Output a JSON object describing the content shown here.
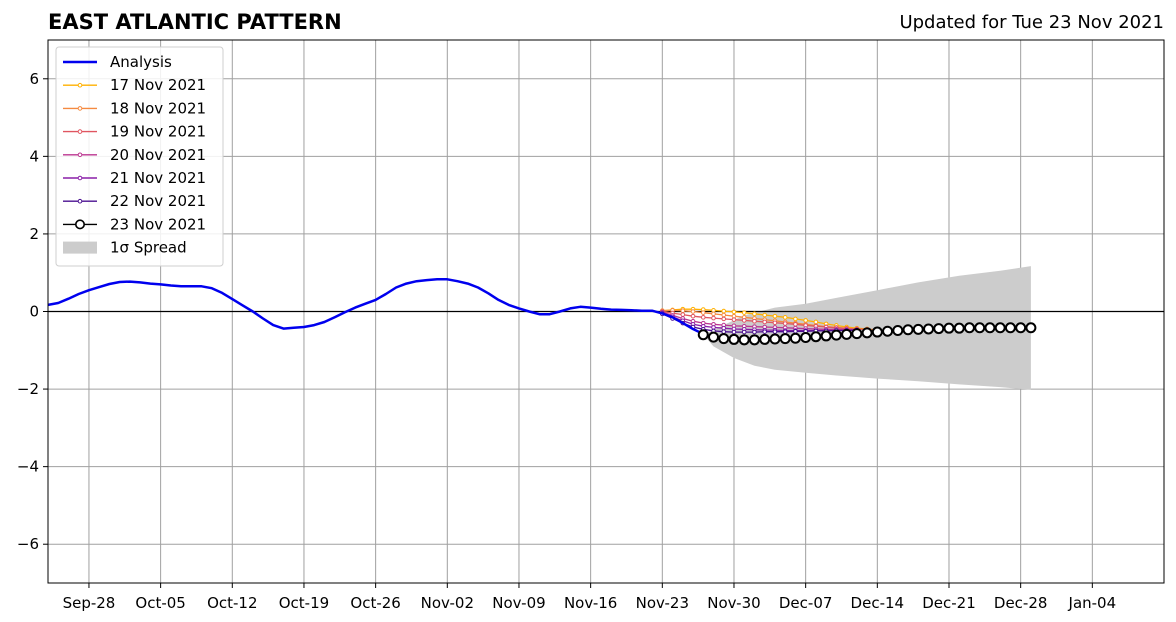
{
  "header": {
    "title": "EAST ATLANTIC PATTERN",
    "updated": "Updated for Tue 23 Nov 2021"
  },
  "chart_data": {
    "type": "line",
    "title": "EAST ATLANTIC PATTERN",
    "xlabel": "",
    "ylabel": "",
    "xlim": [
      "2021-09-24",
      "2022-01-11"
    ],
    "ylim": [
      -7,
      7
    ],
    "grid": true,
    "legend_position": "top-left",
    "x_ticks": [
      "Sep-28",
      "Oct-05",
      "Oct-12",
      "Oct-19",
      "Oct-26",
      "Nov-02",
      "Nov-09",
      "Nov-16",
      "Nov-23",
      "Nov-30",
      "Dec-07",
      "Dec-14",
      "Dec-21",
      "Dec-28",
      "Jan-04"
    ],
    "y_ticks": [
      "6",
      "4",
      "2",
      "0",
      "−2",
      "−4",
      "−6"
    ],
    "y_tick_values": [
      6,
      4,
      2,
      0,
      -2,
      -4,
      -6
    ],
    "analysis": {
      "name": "Analysis",
      "color": "#0000ee",
      "points": [
        [
          "2021-09-24",
          0.17
        ],
        [
          "2021-09-25",
          0.22
        ],
        [
          "2021-09-26",
          0.33
        ],
        [
          "2021-09-27",
          0.45
        ],
        [
          "2021-09-28",
          0.55
        ],
        [
          "2021-09-29",
          0.63
        ],
        [
          "2021-09-30",
          0.71
        ],
        [
          "2021-10-01",
          0.76
        ],
        [
          "2021-10-02",
          0.77
        ],
        [
          "2021-10-03",
          0.75
        ],
        [
          "2021-10-04",
          0.72
        ],
        [
          "2021-10-05",
          0.7
        ],
        [
          "2021-10-06",
          0.67
        ],
        [
          "2021-10-07",
          0.65
        ],
        [
          "2021-10-08",
          0.65
        ],
        [
          "2021-10-09",
          0.65
        ],
        [
          "2021-10-10",
          0.6
        ],
        [
          "2021-10-11",
          0.48
        ],
        [
          "2021-10-12",
          0.32
        ],
        [
          "2021-10-13",
          0.16
        ],
        [
          "2021-10-14",
          0.0
        ],
        [
          "2021-10-15",
          -0.18
        ],
        [
          "2021-10-16",
          -0.35
        ],
        [
          "2021-10-17",
          -0.44
        ],
        [
          "2021-10-18",
          -0.42
        ],
        [
          "2021-10-19",
          -0.4
        ],
        [
          "2021-10-20",
          -0.35
        ],
        [
          "2021-10-21",
          -0.27
        ],
        [
          "2021-10-22",
          -0.15
        ],
        [
          "2021-10-23",
          -0.02
        ],
        [
          "2021-10-24",
          0.1
        ],
        [
          "2021-10-25",
          0.2
        ],
        [
          "2021-10-26",
          0.3
        ],
        [
          "2021-10-27",
          0.45
        ],
        [
          "2021-10-28",
          0.62
        ],
        [
          "2021-10-29",
          0.72
        ],
        [
          "2021-10-30",
          0.78
        ],
        [
          "2021-10-31",
          0.81
        ],
        [
          "2021-11-01",
          0.83
        ],
        [
          "2021-11-02",
          0.83
        ],
        [
          "2021-11-03",
          0.78
        ],
        [
          "2021-11-04",
          0.72
        ],
        [
          "2021-11-05",
          0.62
        ],
        [
          "2021-11-06",
          0.47
        ],
        [
          "2021-11-07",
          0.3
        ],
        [
          "2021-11-08",
          0.17
        ],
        [
          "2021-11-09",
          0.08
        ],
        [
          "2021-11-10",
          0.0
        ],
        [
          "2021-11-11",
          -0.07
        ],
        [
          "2021-11-12",
          -0.07
        ],
        [
          "2021-11-13",
          0.0
        ],
        [
          "2021-11-14",
          0.08
        ],
        [
          "2021-11-15",
          0.12
        ],
        [
          "2021-11-16",
          0.1
        ],
        [
          "2021-11-17",
          0.07
        ],
        [
          "2021-11-18",
          0.05
        ],
        [
          "2021-11-19",
          0.04
        ],
        [
          "2021-11-20",
          0.03
        ],
        [
          "2021-11-21",
          0.02
        ],
        [
          "2021-11-22",
          0.02
        ],
        [
          "2021-11-23",
          -0.05
        ],
        [
          "2021-11-24",
          -0.15
        ],
        [
          "2021-11-25",
          -0.3
        ],
        [
          "2021-11-26",
          -0.45
        ],
        [
          "2021-11-27",
          -0.58
        ]
      ]
    },
    "forecasts": [
      {
        "name": "17 Nov 2021",
        "color": "#ffb000",
        "points": [
          [
            "2021-11-23",
            0.02
          ],
          [
            "2021-11-24",
            0.04
          ],
          [
            "2021-11-25",
            0.06
          ],
          [
            "2021-11-26",
            0.06
          ],
          [
            "2021-11-27",
            0.05
          ],
          [
            "2021-11-28",
            0.03
          ],
          [
            "2021-11-29",
            0.01
          ],
          [
            "2021-11-30",
            -0.01
          ],
          [
            "2021-12-01",
            -0.03
          ],
          [
            "2021-12-02",
            -0.06
          ],
          [
            "2021-12-03",
            -0.09
          ],
          [
            "2021-12-04",
            -0.12
          ],
          [
            "2021-12-05",
            -0.15
          ],
          [
            "2021-12-06",
            -0.19
          ],
          [
            "2021-12-07",
            -0.23
          ],
          [
            "2021-12-08",
            -0.27
          ],
          [
            "2021-12-09",
            -0.32
          ],
          [
            "2021-12-10",
            -0.36
          ],
          [
            "2021-12-11",
            -0.4
          ],
          [
            "2021-12-12",
            -0.43
          ],
          [
            "2021-12-13",
            -0.45
          ]
        ]
      },
      {
        "name": "18 Nov 2021",
        "color": "#f58a40",
        "points": [
          [
            "2021-11-23",
            0.02
          ],
          [
            "2021-11-24",
            0.03
          ],
          [
            "2021-11-25",
            0.02
          ],
          [
            "2021-11-26",
            0.0
          ],
          [
            "2021-11-27",
            -0.03
          ],
          [
            "2021-11-28",
            -0.06
          ],
          [
            "2021-11-29",
            -0.09
          ],
          [
            "2021-11-30",
            -0.12
          ],
          [
            "2021-12-01",
            -0.15
          ],
          [
            "2021-12-02",
            -0.18
          ],
          [
            "2021-12-03",
            -0.21
          ],
          [
            "2021-12-04",
            -0.24
          ],
          [
            "2021-12-05",
            -0.27
          ],
          [
            "2021-12-06",
            -0.3
          ],
          [
            "2021-12-07",
            -0.33
          ],
          [
            "2021-12-08",
            -0.36
          ],
          [
            "2021-12-09",
            -0.39
          ],
          [
            "2021-12-10",
            -0.41
          ],
          [
            "2021-12-11",
            -0.43
          ],
          [
            "2021-12-12",
            -0.45
          ],
          [
            "2021-12-13",
            -0.46
          ],
          [
            "2021-12-14",
            -0.47
          ]
        ]
      },
      {
        "name": "19 Nov 2021",
        "color": "#e05560",
        "points": [
          [
            "2021-11-23",
            0.0
          ],
          [
            "2021-11-24",
            -0.04
          ],
          [
            "2021-11-25",
            -0.08
          ],
          [
            "2021-11-26",
            -0.12
          ],
          [
            "2021-11-27",
            -0.15
          ],
          [
            "2021-11-28",
            -0.17
          ],
          [
            "2021-11-29",
            -0.19
          ],
          [
            "2021-11-30",
            -0.21
          ],
          [
            "2021-12-01",
            -0.23
          ],
          [
            "2021-12-02",
            -0.25
          ],
          [
            "2021-12-03",
            -0.27
          ],
          [
            "2021-12-04",
            -0.29
          ],
          [
            "2021-12-05",
            -0.31
          ],
          [
            "2021-12-06",
            -0.33
          ],
          [
            "2021-12-07",
            -0.36
          ],
          [
            "2021-12-08",
            -0.38
          ],
          [
            "2021-12-09",
            -0.4
          ],
          [
            "2021-12-10",
            -0.42
          ],
          [
            "2021-12-11",
            -0.44
          ],
          [
            "2021-12-12",
            -0.45
          ],
          [
            "2021-12-13",
            -0.46
          ]
        ]
      },
      {
        "name": "20 Nov 2021",
        "color": "#bb3590",
        "points": [
          [
            "2021-11-23",
            -0.02
          ],
          [
            "2021-11-24",
            -0.1
          ],
          [
            "2021-11-25",
            -0.18
          ],
          [
            "2021-11-26",
            -0.25
          ],
          [
            "2021-11-27",
            -0.3
          ],
          [
            "2021-11-28",
            -0.33
          ],
          [
            "2021-11-29",
            -0.35
          ],
          [
            "2021-11-30",
            -0.37
          ],
          [
            "2021-12-01",
            -0.38
          ],
          [
            "2021-12-02",
            -0.39
          ],
          [
            "2021-12-03",
            -0.4
          ],
          [
            "2021-12-04",
            -0.41
          ],
          [
            "2021-12-05",
            -0.42
          ],
          [
            "2021-12-06",
            -0.43
          ],
          [
            "2021-12-07",
            -0.44
          ],
          [
            "2021-12-08",
            -0.45
          ],
          [
            "2021-12-09",
            -0.46
          ],
          [
            "2021-12-10",
            -0.46
          ],
          [
            "2021-12-11",
            -0.47
          ],
          [
            "2021-12-12",
            -0.47
          ]
        ]
      },
      {
        "name": "21 Nov 2021",
        "color": "#8a1fa8",
        "points": [
          [
            "2021-11-23",
            -0.04
          ],
          [
            "2021-11-24",
            -0.14
          ],
          [
            "2021-11-25",
            -0.24
          ],
          [
            "2021-11-26",
            -0.33
          ],
          [
            "2021-11-27",
            -0.38
          ],
          [
            "2021-11-28",
            -0.41
          ],
          [
            "2021-11-29",
            -0.43
          ],
          [
            "2021-11-30",
            -0.45
          ],
          [
            "2021-12-01",
            -0.46
          ],
          [
            "2021-12-02",
            -0.47
          ],
          [
            "2021-12-03",
            -0.48
          ],
          [
            "2021-12-04",
            -0.48
          ],
          [
            "2021-12-05",
            -0.49
          ],
          [
            "2021-12-06",
            -0.49
          ],
          [
            "2021-12-07",
            -0.49
          ],
          [
            "2021-12-08",
            -0.49
          ],
          [
            "2021-12-09",
            -0.49
          ],
          [
            "2021-12-10",
            -0.49
          ],
          [
            "2021-12-11",
            -0.48
          ],
          [
            "2021-12-12",
            -0.48
          ]
        ]
      },
      {
        "name": "22 Nov 2021",
        "color": "#4a0f90",
        "points": [
          [
            "2021-11-23",
            -0.06
          ],
          [
            "2021-11-24",
            -0.18
          ],
          [
            "2021-11-25",
            -0.3
          ],
          [
            "2021-11-26",
            -0.4
          ],
          [
            "2021-11-27",
            -0.46
          ],
          [
            "2021-11-28",
            -0.5
          ],
          [
            "2021-11-29",
            -0.52
          ],
          [
            "2021-11-30",
            -0.53
          ],
          [
            "2021-12-01",
            -0.53
          ],
          [
            "2021-12-02",
            -0.53
          ],
          [
            "2021-12-03",
            -0.52
          ],
          [
            "2021-12-04",
            -0.52
          ],
          [
            "2021-12-05",
            -0.52
          ],
          [
            "2021-12-06",
            -0.51
          ],
          [
            "2021-12-07",
            -0.51
          ],
          [
            "2021-12-08",
            -0.5
          ],
          [
            "2021-12-09",
            -0.5
          ],
          [
            "2021-12-10",
            -0.49
          ],
          [
            "2021-12-11",
            -0.49
          ],
          [
            "2021-12-12",
            -0.48
          ]
        ]
      },
      {
        "name": "23 Nov 2021",
        "color": "#000000",
        "points": [
          [
            "2021-11-27",
            -0.6
          ],
          [
            "2021-11-28",
            -0.66
          ],
          [
            "2021-11-29",
            -0.7
          ],
          [
            "2021-11-30",
            -0.72
          ],
          [
            "2021-12-01",
            -0.73
          ],
          [
            "2021-12-02",
            -0.73
          ],
          [
            "2021-12-03",
            -0.72
          ],
          [
            "2021-12-04",
            -0.71
          ],
          [
            "2021-12-05",
            -0.7
          ],
          [
            "2021-12-06",
            -0.69
          ],
          [
            "2021-12-07",
            -0.67
          ],
          [
            "2021-12-08",
            -0.65
          ],
          [
            "2021-12-09",
            -0.63
          ],
          [
            "2021-12-10",
            -0.61
          ],
          [
            "2021-12-11",
            -0.59
          ],
          [
            "2021-12-12",
            -0.57
          ],
          [
            "2021-12-13",
            -0.55
          ],
          [
            "2021-12-14",
            -0.53
          ],
          [
            "2021-12-15",
            -0.51
          ],
          [
            "2021-12-16",
            -0.49
          ],
          [
            "2021-12-17",
            -0.47
          ],
          [
            "2021-12-18",
            -0.46
          ],
          [
            "2021-12-19",
            -0.45
          ],
          [
            "2021-12-20",
            -0.44
          ],
          [
            "2021-12-21",
            -0.43
          ],
          [
            "2021-12-22",
            -0.43
          ],
          [
            "2021-12-23",
            -0.42
          ],
          [
            "2021-12-24",
            -0.42
          ],
          [
            "2021-12-25",
            -0.42
          ],
          [
            "2021-12-26",
            -0.42
          ],
          [
            "2021-12-27",
            -0.42
          ],
          [
            "2021-12-28",
            -0.42
          ],
          [
            "2021-12-29",
            -0.42
          ]
        ]
      }
    ],
    "spread": {
      "name": "1σ Spread",
      "color": "#cccccc",
      "upper": [
        [
          "2021-11-27",
          -0.6
        ],
        [
          "2021-12-01",
          -0.1
        ],
        [
          "2021-12-04",
          0.1
        ],
        [
          "2021-12-07",
          0.2
        ],
        [
          "2021-12-10",
          0.35
        ],
        [
          "2021-12-14",
          0.55
        ],
        [
          "2021-12-18",
          0.75
        ],
        [
          "2021-12-22",
          0.92
        ],
        [
          "2021-12-26",
          1.05
        ],
        [
          "2021-12-29",
          1.17
        ]
      ],
      "lower": [
        [
          "2021-11-27",
          -0.6
        ],
        [
          "2021-11-28",
          -0.9
        ],
        [
          "2021-11-30",
          -1.2
        ],
        [
          "2021-12-02",
          -1.4
        ],
        [
          "2021-12-04",
          -1.5
        ],
        [
          "2021-12-07",
          -1.58
        ],
        [
          "2021-12-10",
          -1.65
        ],
        [
          "2021-12-14",
          -1.73
        ],
        [
          "2021-12-18",
          -1.8
        ],
        [
          "2021-12-22",
          -1.88
        ],
        [
          "2021-12-26",
          -1.95
        ],
        [
          "2021-12-29",
          -2.02
        ]
      ]
    },
    "legend": [
      {
        "label": "Analysis",
        "kind": "line",
        "color": "#0000ee"
      },
      {
        "label": "17 Nov 2021",
        "kind": "marker-line",
        "color": "#ffb000"
      },
      {
        "label": "18 Nov 2021",
        "kind": "marker-line",
        "color": "#f58a40"
      },
      {
        "label": "19 Nov 2021",
        "kind": "marker-line",
        "color": "#e05560"
      },
      {
        "label": "20 Nov 2021",
        "kind": "marker-line",
        "color": "#bb3590"
      },
      {
        "label": "21 Nov 2021",
        "kind": "marker-line",
        "color": "#8a1fa8"
      },
      {
        "label": "22 Nov 2021",
        "kind": "marker-line",
        "color": "#4a0f90"
      },
      {
        "label": "23 Nov 2021",
        "kind": "circle-line",
        "color": "#000000"
      },
      {
        "label": "1σ Spread",
        "kind": "patch",
        "color": "#cccccc"
      }
    ]
  }
}
